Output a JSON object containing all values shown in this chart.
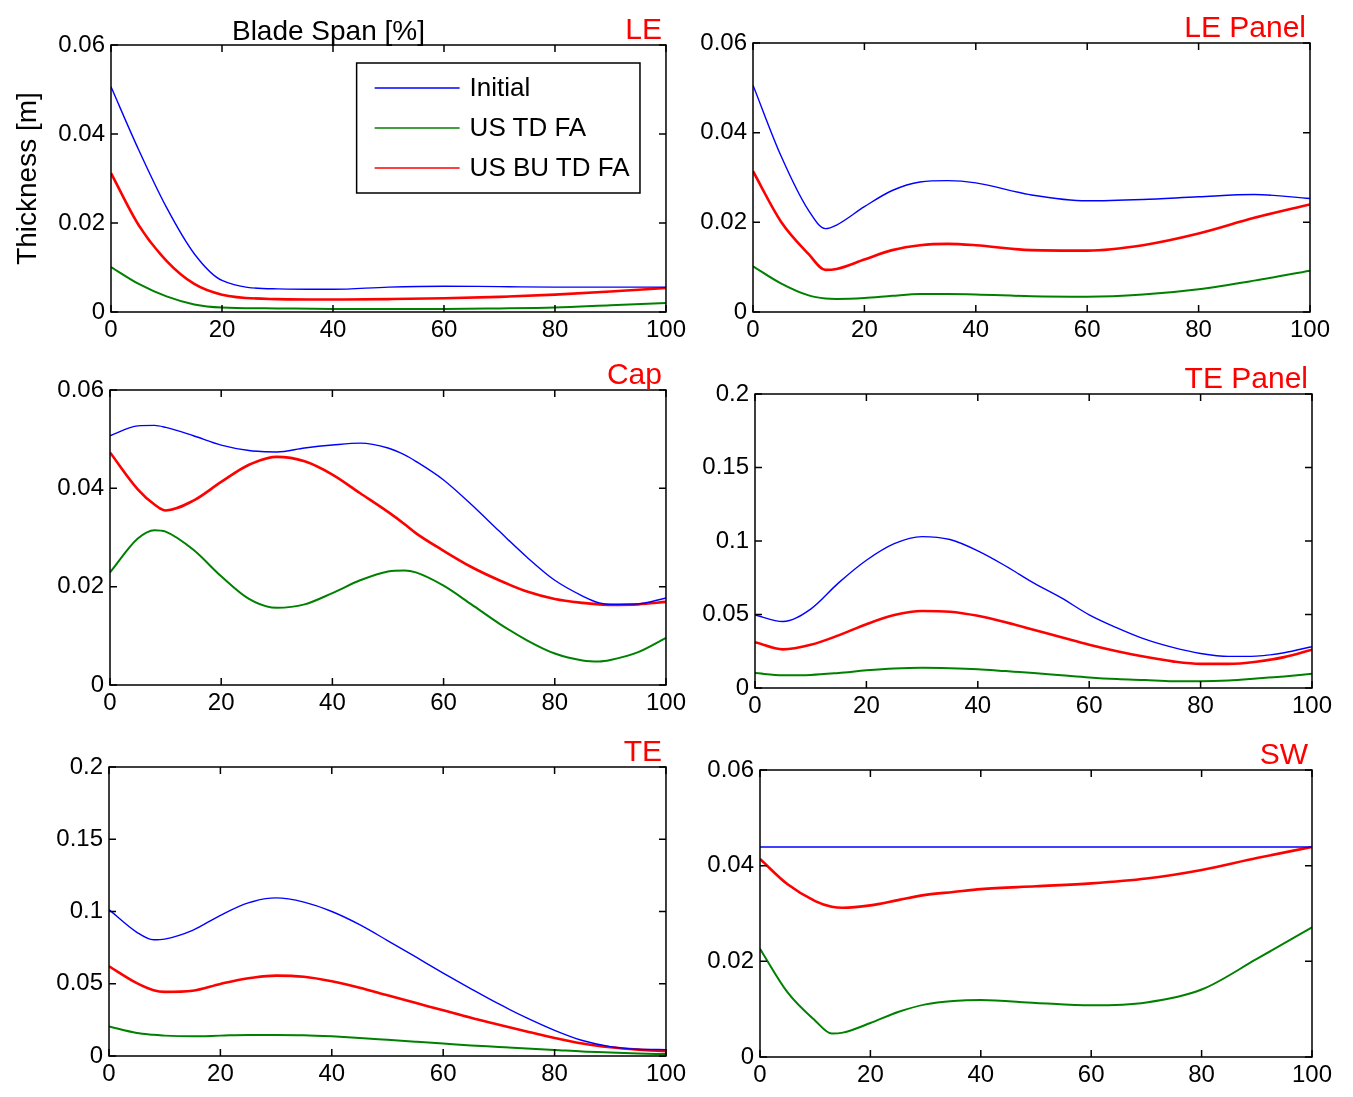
{
  "chart_data": [
    {
      "type": "line",
      "title": "LE",
      "xlabel": "Blade Span [%]",
      "ylabel": "Thickness [m]",
      "legend": "top right",
      "grid": false,
      "xlim": [
        0,
        100
      ],
      "xticks": [
        0,
        20,
        40,
        60,
        80,
        100
      ],
      "ylim": [
        0,
        0.06
      ],
      "yticks": [
        0,
        0.02,
        0.04,
        0.06
      ],
      "x": [
        0,
        5,
        10,
        15,
        20,
        30,
        40,
        50,
        60,
        70,
        80,
        90,
        100
      ],
      "series": [
        {
          "name": "Initial",
          "color": "#0000ff",
          "values": [
            0.0506,
            0.0364,
            0.0235,
            0.0131,
            0.0071,
            0.0052,
            0.0051,
            0.0056,
            0.0058,
            0.0057,
            0.0056,
            0.0056,
            0.0056
          ]
        },
        {
          "name": "US TD FA",
          "color": "#008000",
          "values": [
            0.0101,
            0.0063,
            0.0035,
            0.0017,
            0.001,
            0.0008,
            0.0007,
            0.0007,
            0.0007,
            0.0008,
            0.001,
            0.0015,
            0.002
          ]
        },
        {
          "name": "US BU TD FA",
          "color": "#ff0000",
          "values": [
            0.0312,
            0.0195,
            0.0115,
            0.0063,
            0.0039,
            0.0029,
            0.0028,
            0.0029,
            0.0031,
            0.0034,
            0.0039,
            0.0046,
            0.0054
          ]
        }
      ]
    },
    {
      "type": "line",
      "title": "LE Panel",
      "grid": false,
      "xlim": [
        0,
        100
      ],
      "xticks": [
        0,
        20,
        40,
        60,
        80,
        100
      ],
      "ylim": [
        0,
        0.06
      ],
      "yticks": [
        0,
        0.02,
        0.04,
        0.06
      ],
      "x": [
        0,
        5,
        10,
        13,
        15,
        20,
        25,
        30,
        35,
        40,
        50,
        60,
        70,
        80,
        90,
        100
      ],
      "series": [
        {
          "color": "#0000ff",
          "values": [
            0.0506,
            0.0349,
            0.0226,
            0.0186,
            0.0194,
            0.0235,
            0.0271,
            0.029,
            0.0293,
            0.0288,
            0.0261,
            0.0248,
            0.0251,
            0.0257,
            0.0262,
            0.0253
          ]
        },
        {
          "color": "#008000",
          "values": [
            0.0102,
            0.0064,
            0.0037,
            0.003,
            0.0029,
            0.0031,
            0.0036,
            0.004,
            0.004,
            0.0039,
            0.0035,
            0.0034,
            0.0039,
            0.0051,
            0.007,
            0.0092
          ]
        },
        {
          "color": "#ff0000",
          "values": [
            0.0314,
            0.0202,
            0.0129,
            0.0094,
            0.0096,
            0.0117,
            0.0138,
            0.0149,
            0.0152,
            0.0149,
            0.0138,
            0.0137,
            0.0149,
            0.0175,
            0.021,
            0.024
          ]
        }
      ]
    },
    {
      "type": "line",
      "title": "Cap",
      "grid": false,
      "xlim": [
        0,
        100
      ],
      "xticks": [
        0,
        20,
        40,
        60,
        80,
        100
      ],
      "ylim": [
        0,
        0.06
      ],
      "yticks": [
        0,
        0.02,
        0.04,
        0.06
      ],
      "x": [
        0,
        5,
        8,
        10,
        15,
        20,
        25,
        30,
        35,
        40,
        45,
        50,
        53,
        55,
        60,
        65,
        70,
        75,
        80,
        85,
        88,
        90,
        95,
        100
      ],
      "series": [
        {
          "color": "#0000ff",
          "values": [
            0.0507,
            0.0527,
            0.0528,
            0.0524,
            0.0507,
            0.0488,
            0.0477,
            0.0474,
            0.0482,
            0.0488,
            0.0492,
            0.0482,
            0.0468,
            0.0455,
            0.0417,
            0.0367,
            0.0313,
            0.026,
            0.0213,
            0.0181,
            0.0167,
            0.0164,
            0.0165,
            0.0177
          ]
        },
        {
          "color": "#008000",
          "values": [
            0.0229,
            0.0298,
            0.0315,
            0.0312,
            0.0275,
            0.0221,
            0.0175,
            0.0157,
            0.0164,
            0.0187,
            0.0213,
            0.0231,
            0.0233,
            0.0229,
            0.0202,
            0.0164,
            0.0125,
            0.0091,
            0.0064,
            0.005,
            0.0048,
            0.0051,
            0.0067,
            0.0096
          ]
        },
        {
          "color": "#ff0000",
          "values": [
            0.0473,
            0.0398,
            0.0367,
            0.0355,
            0.0375,
            0.0413,
            0.0448,
            0.0464,
            0.0455,
            0.0428,
            0.039,
            0.0352,
            0.0327,
            0.0309,
            0.0273,
            0.024,
            0.0213,
            0.019,
            0.0175,
            0.0167,
            0.0164,
            0.0163,
            0.0164,
            0.0169
          ]
        }
      ]
    },
    {
      "type": "line",
      "title": "TE Panel",
      "grid": false,
      "xlim": [
        0,
        100
      ],
      "xticks": [
        0,
        20,
        40,
        60,
        80,
        100
      ],
      "ylim": [
        0,
        0.2
      ],
      "yticks": [
        0,
        0.05,
        0.1,
        0.15,
        0.2
      ],
      "x": [
        0,
        5,
        10,
        15,
        20,
        25,
        30,
        35,
        40,
        45,
        50,
        55,
        60,
        65,
        70,
        75,
        80,
        85,
        90,
        95,
        100
      ],
      "series": [
        {
          "color": "#0000ff",
          "values": [
            0.0497,
            0.0452,
            0.0537,
            0.0715,
            0.0869,
            0.0982,
            0.103,
            0.101,
            0.0933,
            0.083,
            0.0715,
            0.0613,
            0.0498,
            0.0409,
            0.0332,
            0.0276,
            0.0235,
            0.0215,
            0.0217,
            0.024,
            0.0281
          ]
        },
        {
          "color": "#008000",
          "values": [
            0.0102,
            0.0087,
            0.0089,
            0.0102,
            0.012,
            0.0133,
            0.0138,
            0.0135,
            0.0128,
            0.0115,
            0.0102,
            0.0087,
            0.0072,
            0.0061,
            0.0054,
            0.0046,
            0.0046,
            0.0051,
            0.0064,
            0.0079,
            0.0097
          ]
        },
        {
          "color": "#ff0000",
          "values": [
            0.0312,
            0.0263,
            0.0294,
            0.0358,
            0.0434,
            0.0496,
            0.0524,
            0.0519,
            0.0491,
            0.0447,
            0.0396,
            0.0345,
            0.0294,
            0.025,
            0.0212,
            0.0181,
            0.0164,
            0.0164,
            0.0179,
            0.021,
            0.0261
          ]
        }
      ]
    },
    {
      "type": "line",
      "title": "TE",
      "grid": false,
      "xlim": [
        0,
        100
      ],
      "xticks": [
        0,
        20,
        40,
        60,
        80,
        100
      ],
      "ylim": [
        0,
        0.2
      ],
      "yticks": [
        0,
        0.05,
        0.1,
        0.15,
        0.2
      ],
      "x": [
        0,
        5,
        8,
        10,
        15,
        20,
        25,
        30,
        35,
        40,
        45,
        50,
        55,
        60,
        65,
        70,
        75,
        80,
        85,
        90,
        95,
        100
      ],
      "series": [
        {
          "color": "#0000ff",
          "values": [
            0.1013,
            0.0856,
            0.0804,
            0.0809,
            0.0869,
            0.0974,
            0.106,
            0.1094,
            0.1065,
            0.1,
            0.0909,
            0.0799,
            0.0687,
            0.0574,
            0.0465,
            0.036,
            0.0264,
            0.0178,
            0.0107,
            0.0065,
            0.0047,
            0.0044
          ]
        },
        {
          "color": "#008000",
          "values": [
            0.0204,
            0.0159,
            0.0147,
            0.0141,
            0.0136,
            0.0141,
            0.0146,
            0.0146,
            0.0144,
            0.0136,
            0.0125,
            0.0112,
            0.0099,
            0.0086,
            0.0073,
            0.0063,
            0.0052,
            0.0042,
            0.0031,
            0.0024,
            0.0018,
            0.0013
          ]
        },
        {
          "color": "#ff0000",
          "values": [
            0.0621,
            0.0504,
            0.0455,
            0.0444,
            0.0452,
            0.0499,
            0.0538,
            0.0556,
            0.0548,
            0.0517,
            0.0473,
            0.042,
            0.0368,
            0.0316,
            0.0264,
            0.0217,
            0.017,
            0.0125,
            0.0086,
            0.006,
            0.0044,
            0.0034
          ]
        }
      ]
    },
    {
      "type": "line",
      "title": "SW",
      "grid": false,
      "xlim": [
        0,
        100
      ],
      "xticks": [
        0,
        20,
        40,
        60,
        80,
        100
      ],
      "ylim": [
        0,
        0.06
      ],
      "yticks": [
        0,
        0.02,
        0.04,
        0.06
      ],
      "x": [
        0,
        5,
        10,
        13,
        15,
        20,
        25,
        30,
        35,
        40,
        50,
        60,
        70,
        80,
        90,
        100
      ],
      "series": [
        {
          "color": "#0000ff",
          "values": [
            0.0439,
            0.0439,
            0.0439,
            0.0439,
            0.0439,
            0.0439,
            0.0439,
            0.0439,
            0.0439,
            0.0439,
            0.0439,
            0.0439,
            0.0439,
            0.0439,
            0.0439,
            0.0439
          ]
        },
        {
          "color": "#008000",
          "values": [
            0.0226,
            0.0135,
            0.0076,
            0.0049,
            0.0051,
            0.0071,
            0.0094,
            0.011,
            0.0117,
            0.0119,
            0.0113,
            0.0108,
            0.0114,
            0.0141,
            0.0205,
            0.0271
          ]
        },
        {
          "color": "#ff0000",
          "values": [
            0.0414,
            0.0361,
            0.0326,
            0.0314,
            0.0312,
            0.0317,
            0.0328,
            0.0339,
            0.0345,
            0.0351,
            0.0357,
            0.0363,
            0.0373,
            0.0391,
            0.0416,
            0.0439
          ]
        }
      ]
    }
  ]
}
